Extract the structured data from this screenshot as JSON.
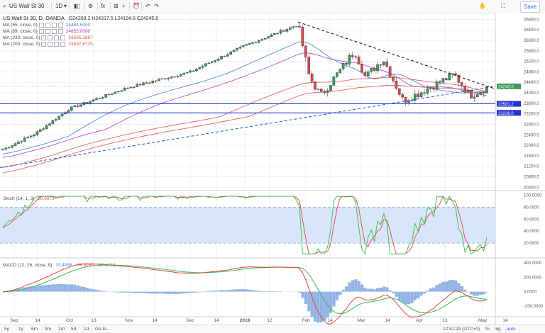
{
  "toolbar": {
    "symbol": "US Wall St 30",
    "interval": "1D",
    "fx_label": "fx",
    "save_label": "Save"
  },
  "header": {
    "title": "US Wall St 30, D, OANDA",
    "ohlc": "O24268.2 H24317.5 L24184.8 C24245.8"
  },
  "indicators": [
    {
      "label": "MA (55, close, 0)",
      "value": "24484.5000",
      "color": "#3f7fd6"
    },
    {
      "label": "MA (89, close, 0)",
      "value": "24852.0090",
      "color": "#b03ad3"
    },
    {
      "label": "MA (233, close, 0)",
      "value": "23505.2867",
      "color": "#e05252"
    },
    {
      "label": "MA (200, close, 0)",
      "value": "23837.8725",
      "color": "#e05252"
    }
  ],
  "stoch": {
    "label": "Stoch (14, 1, 3)",
    "value": "60.6075",
    "color": "#e04242"
  },
  "macd": {
    "label": "MACD (12, 26, close, 9)",
    "values": [
      {
        "text": "10.4958",
        "color": "#3f7fd6"
      },
      {
        "text": "-76.9260",
        "color": "#e04242"
      },
      {
        "text": "-87.4218",
        "color": "#2fbf46"
      }
    ]
  },
  "price_axis": {
    "ticks": [
      "26800.0",
      "26400.0",
      "26000.0",
      "25600.0",
      "25200.0",
      "24800.0",
      "24400.0",
      "24000.0",
      "23600.0",
      "23200.0",
      "22800.0",
      "22400.0",
      "22000.0",
      "21600.0",
      "21200.0",
      "20800.0",
      "20400.0"
    ],
    "current_label": "24245.8",
    "hline_labels": [
      "23581.2",
      "23238.0"
    ]
  },
  "stoch_axis": {
    "ticks": [
      "100.0000",
      "80.0000",
      "60.0000",
      "40.0000",
      "20.0000"
    ]
  },
  "macd_axis": {
    "ticks": [
      "400.0000",
      "200.0000",
      "0.0000",
      "-200.0000"
    ]
  },
  "time_axis": {
    "ticks": [
      "Sep",
      "14",
      "Oct",
      "13",
      "Nov",
      "14",
      "Dec",
      "14",
      "2018",
      "12",
      "Feb",
      "14",
      "Mar",
      "14",
      "Apr",
      "13",
      "May",
      "14"
    ]
  },
  "footer": {
    "ranges": [
      "5y",
      "1y",
      "6m",
      "3m",
      "1m",
      "5d",
      "1d",
      "Go to..."
    ],
    "clock": "12:51:29 (UTC+0)",
    "scale_options": [
      "%",
      "log",
      "auto"
    ]
  },
  "chart_data": {
    "type": "candlestick",
    "title": "US Wall St 30, D, OANDA",
    "ylim": [
      20300,
      27000
    ],
    "x_labels": [
      "Sep",
      "14",
      "Oct",
      "13",
      "Nov",
      "14",
      "Dec",
      "14",
      "2018",
      "12",
      "Feb",
      "14",
      "Mar",
      "14",
      "Apr",
      "13",
      "May",
      "14"
    ],
    "key_points": [
      {
        "x": "Sep",
        "price": 21850
      },
      {
        "x": "Oct",
        "price": 22450
      },
      {
        "x": "Nov",
        "price": 23400
      },
      {
        "x": "Dec",
        "price": 24200
      },
      {
        "x": "2018",
        "price": 24800
      },
      {
        "x": "12",
        "price": 25800
      },
      {
        "x": "Jan 26",
        "price": 26600
      },
      {
        "x": "Feb",
        "price": 24600
      },
      {
        "x": "Feb 8",
        "price": 23900
      },
      {
        "x": "Feb 26",
        "price": 25600
      },
      {
        "x": "Mar",
        "price": 24600
      },
      {
        "x": "Mar 12",
        "price": 25300
      },
      {
        "x": "Mar 23",
        "price": 23700
      },
      {
        "x": "Apr",
        "price": 24000
      },
      {
        "x": "Apr 18",
        "price": 24700
      },
      {
        "x": "May",
        "price": 23900
      },
      {
        "x": "May 9",
        "price": 24245.8
      }
    ],
    "horizontal_lines": [
      23581.2,
      23238.0
    ],
    "moving_averages": [
      {
        "name": "MA (55, close, 0)",
        "last": 24484.5
      },
      {
        "name": "MA (89, close, 0)",
        "last": 24852.009
      },
      {
        "name": "MA (233, close, 0)",
        "last": 23505.2867
      },
      {
        "name": "MA (200, close, 0)",
        "last": 23837.8725
      }
    ],
    "stochastic": {
      "last": 60.6075,
      "overbought": 80,
      "oversold": 20
    },
    "macd": {
      "macd": 10.4958,
      "signal": -76.926,
      "histogram": -87.4218
    }
  }
}
